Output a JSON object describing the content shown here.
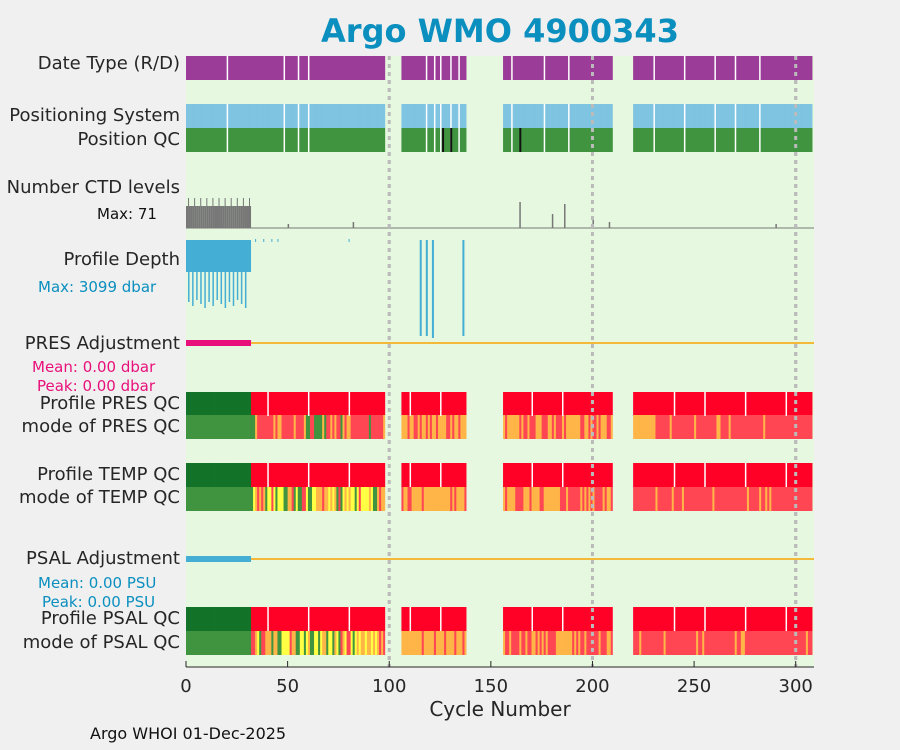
{
  "chart_data": {
    "type": "table",
    "title": "Argo WMO 4900343",
    "xlabel": "Cycle Number",
    "xlim": [
      0,
      309
    ],
    "xticks": [
      0,
      50,
      100,
      150,
      200,
      250,
      300
    ],
    "vlines": [
      100,
      200,
      300
    ],
    "gaps": [
      [
        98,
        106
      ],
      [
        138,
        156
      ],
      [
        210,
        220
      ]
    ],
    "rows": [
      {
        "label": "Date Type (R/D)"
      },
      {
        "label": "Positioning System"
      },
      {
        "label": "Position QC"
      },
      {
        "label": "Number CTD levels",
        "sub": "Max: 71"
      },
      {
        "label": "Profile Depth",
        "sub": "Max: 3099 dbar"
      },
      {
        "label": "PRES Adjustment",
        "sub1": "Mean: 0.00 dbar",
        "sub2": "Peak: 0.00 dbar"
      },
      {
        "label": "Profile PRES QC"
      },
      {
        "label": "mode of PRES QC"
      },
      {
        "label": "Profile TEMP QC"
      },
      {
        "label": "mode of TEMP QC"
      },
      {
        "label": "PSAL Adjustment",
        "sub1": "Mean: 0.00 PSU",
        "sub2": "Peak: 0.00 PSU"
      },
      {
        "label": "Profile PSAL QC"
      },
      {
        "label": "mode of PSAL QC"
      }
    ],
    "number_ctd_levels_max": 71,
    "profile_depth_max_dbar": 3099,
    "colors": {
      "background": "#e6f8df",
      "date_type": "#9b3d98",
      "positioning": "#7fc4e0",
      "qc_good": "#409440",
      "qc_dark": "#127329",
      "qc_bad": "#ff0026",
      "qc_bad_light": "#ff4652",
      "qc_probable": "#ffb547",
      "qc_yellow": "#ffff44",
      "ctd": "#777777",
      "depth": "#45aed4",
      "pres_adj": "#e8107a",
      "psal_adj": "#45aed4",
      "adj_line": "#f5b93a"
    }
  },
  "footer": "Argo WHOI 01-Dec-2025"
}
